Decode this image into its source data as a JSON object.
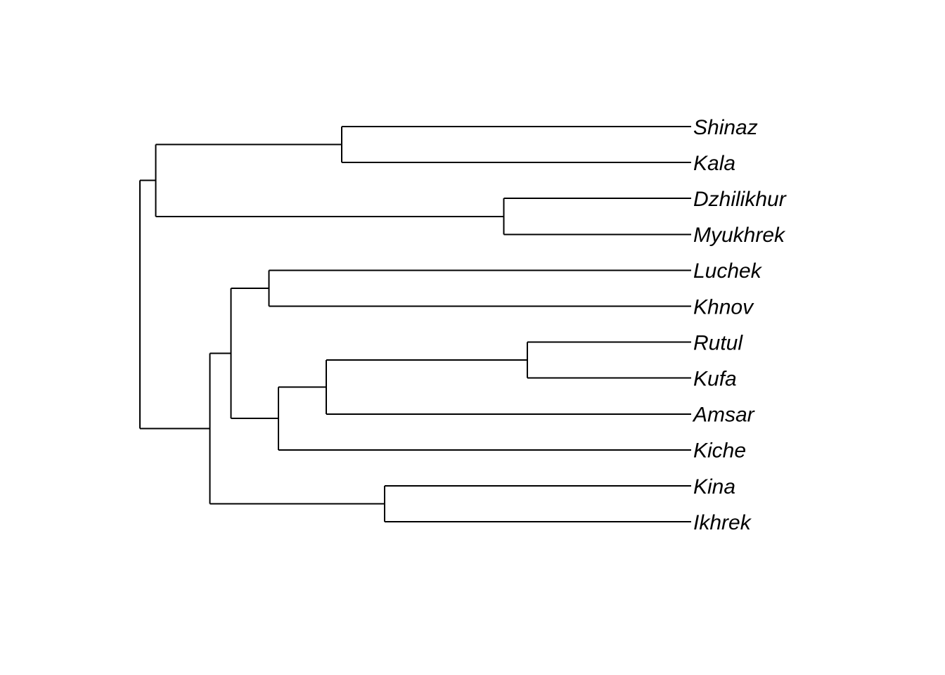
{
  "diagram": {
    "type": "dendrogram",
    "orientation": "root-left",
    "colors": {
      "branch": "#000000",
      "label": "#000000",
      "background": "#ffffff"
    },
    "tips": [
      "Shinaz",
      "Kala",
      "Dzhilikhur",
      "Myukhrek",
      "Luchek",
      "Khnov",
      "Rutul",
      "Kufa",
      "Amsar",
      "Kiche",
      "Kina",
      "Ikhrek"
    ],
    "tree": {
      "depth": 0,
      "children": [
        {
          "depth": 0.029,
          "children": [
            {
              "depth": 0.366,
              "children": [
                {
                  "tip": "Shinaz"
                },
                {
                  "tip": "Kala"
                }
              ]
            },
            {
              "depth": 0.66,
              "children": [
                {
                  "tip": "Dzhilikhur"
                },
                {
                  "tip": "Myukhrek"
                }
              ]
            }
          ]
        },
        {
          "depth": 0.127,
          "children": [
            {
              "depth": 0.165,
              "children": [
                {
                  "depth": 0.234,
                  "children": [
                    {
                      "tip": "Luchek"
                    },
                    {
                      "tip": "Khnov"
                    }
                  ]
                },
                {
                  "depth": 0.251,
                  "children": [
                    {
                      "depth": 0.338,
                      "children": [
                        {
                          "depth": 0.703,
                          "children": [
                            {
                              "tip": "Rutul"
                            },
                            {
                              "tip": "Kufa"
                            }
                          ]
                        },
                        {
                          "tip": "Amsar"
                        }
                      ]
                    },
                    {
                      "tip": "Kiche"
                    }
                  ]
                }
              ]
            },
            {
              "depth": 0.444,
              "children": [
                {
                  "tip": "Kina"
                },
                {
                  "tip": "Ikhrek"
                }
              ]
            }
          ]
        }
      ]
    }
  }
}
